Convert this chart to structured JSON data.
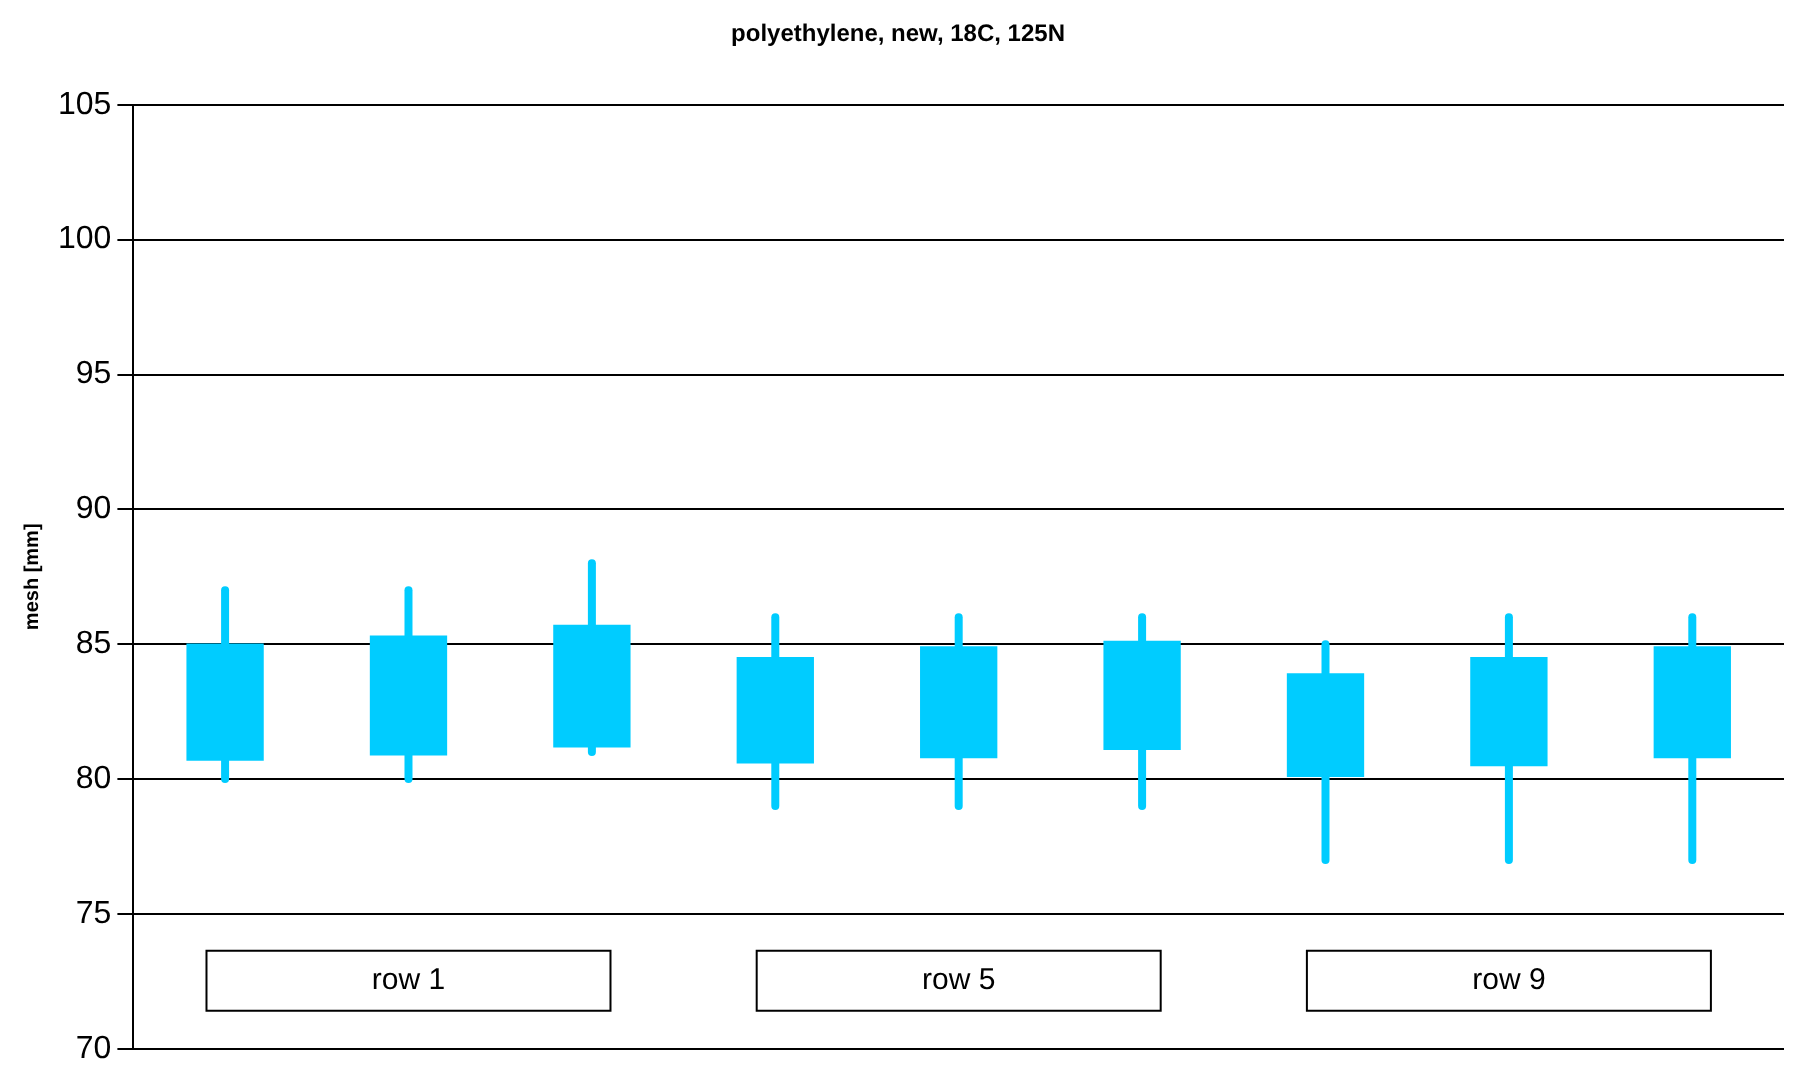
{
  "chart_data": {
    "type": "candlestick",
    "title": "polyethylene, new, 18C, 125N",
    "ylabel": "mesh [mm]",
    "categories": [
      null,
      null,
      null,
      null,
      null,
      null,
      null,
      null,
      null
    ],
    "ohlc": [
      [
        80.7,
        87,
        80,
        85.0
      ],
      [
        80.9,
        87,
        80,
        85.3
      ],
      [
        81.2,
        88,
        81,
        85.7
      ],
      [
        80.6,
        86,
        79,
        84.5
      ],
      [
        80.8,
        86,
        79,
        84.9
      ],
      [
        81.1,
        86,
        79,
        85.1
      ],
      [
        80.1,
        85,
        77,
        83.9
      ],
      [
        80.5,
        86,
        77,
        84.5
      ],
      [
        80.8,
        86,
        77,
        84.9
      ]
    ],
    "color": "#00ccff",
    "ylim": [
      70,
      105
    ],
    "yticks": [
      70,
      75,
      80,
      85,
      90,
      95,
      100,
      105
    ],
    "grid": "y",
    "tick_labels": "y",
    "annotations": [
      "row 1",
      "row 5",
      "row 9"
    ]
  }
}
